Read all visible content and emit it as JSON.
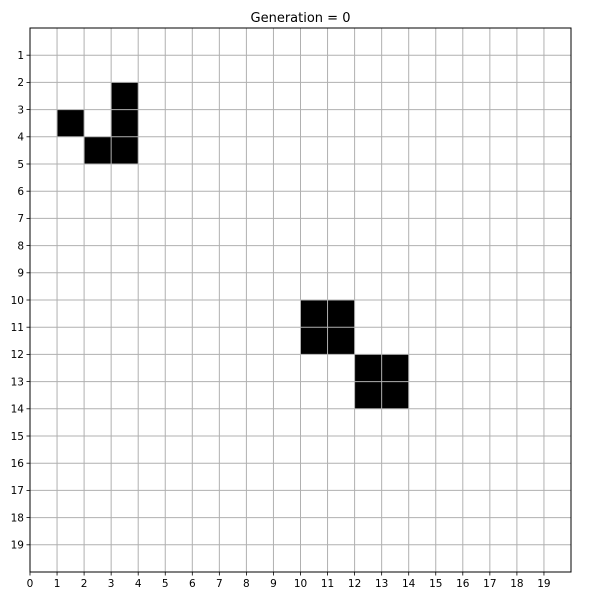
{
  "chart_data": {
    "type": "heatmap",
    "title": "Generation = 0",
    "xlabel": "",
    "ylabel": "",
    "xlim": [
      0,
      20
    ],
    "ylim": [
      20,
      0
    ],
    "grid": true,
    "x_ticks": [
      0,
      1,
      2,
      3,
      4,
      5,
      6,
      7,
      8,
      9,
      10,
      11,
      12,
      13,
      14,
      15,
      16,
      17,
      18,
      19
    ],
    "y_ticks": [
      1,
      2,
      3,
      4,
      5,
      6,
      7,
      8,
      9,
      10,
      11,
      12,
      13,
      14,
      15,
      16,
      17,
      18,
      19
    ],
    "live_cells": [
      {
        "x": 3,
        "y": 2
      },
      {
        "x": 1,
        "y": 3
      },
      {
        "x": 3,
        "y": 3
      },
      {
        "x": 2,
        "y": 4
      },
      {
        "x": 3,
        "y": 4
      },
      {
        "x": 10,
        "y": 10
      },
      {
        "x": 11,
        "y": 10
      },
      {
        "x": 10,
        "y": 11
      },
      {
        "x": 11,
        "y": 11
      },
      {
        "x": 12,
        "y": 12
      },
      {
        "x": 13,
        "y": 12
      },
      {
        "x": 12,
        "y": 13
      },
      {
        "x": 13,
        "y": 13
      }
    ],
    "colors": {
      "live": "#000000",
      "dead": "#ffffff",
      "grid": "#b0b0b0",
      "frame": "#000000"
    }
  }
}
